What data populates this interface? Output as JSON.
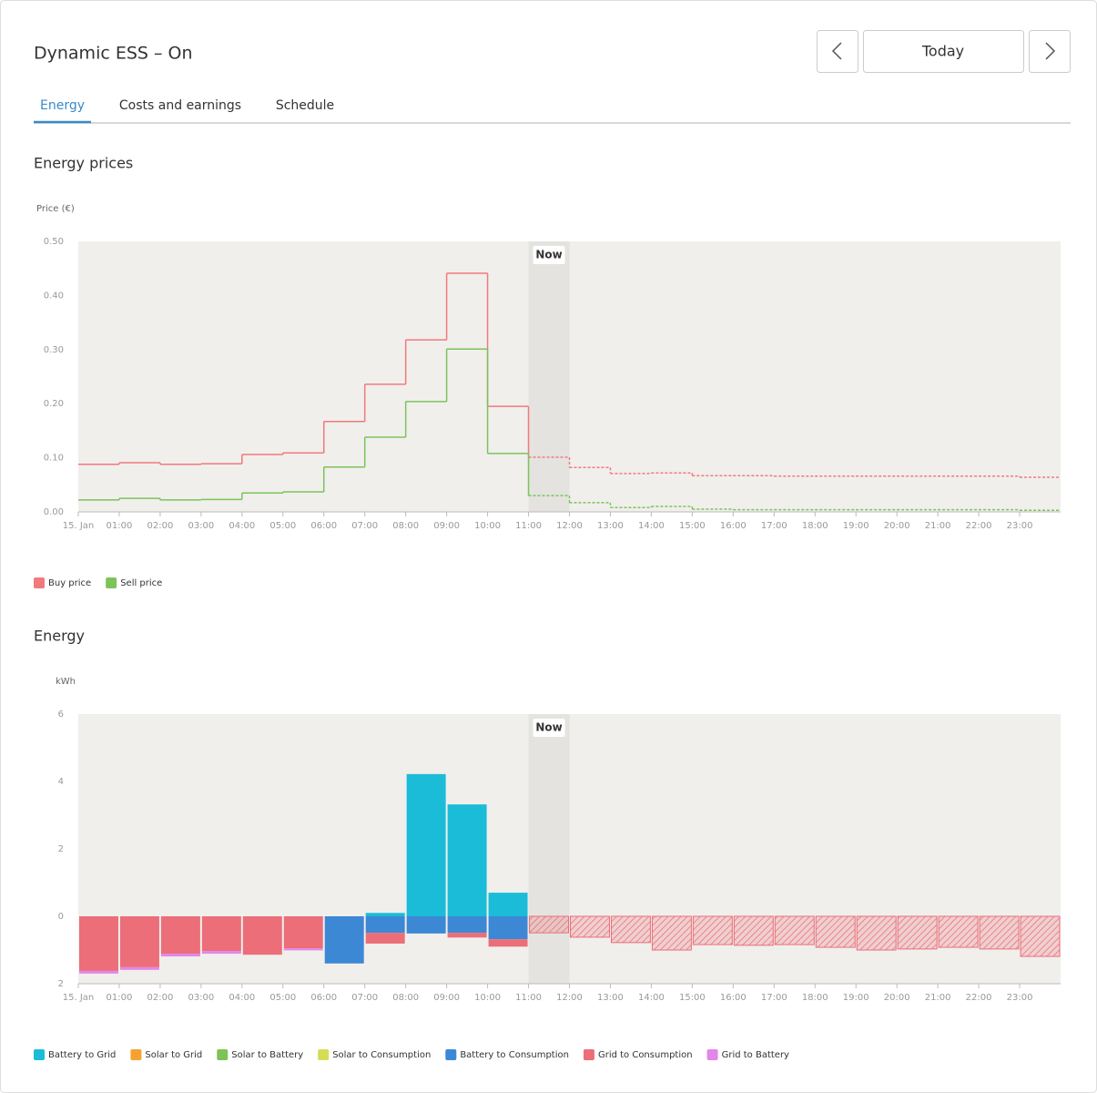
{
  "header": {
    "title": "Dynamic ESS – On",
    "date_button": "Today"
  },
  "tabs": [
    "Energy",
    "Costs and earnings",
    "Schedule"
  ],
  "chart_data": [
    {
      "type": "line",
      "step": true,
      "title": "Energy prices",
      "ylabel": "Price (€)",
      "categories": [
        "15. Jan",
        "01:00",
        "02:00",
        "03:00",
        "04:00",
        "05:00",
        "06:00",
        "07:00",
        "08:00",
        "09:00",
        "10:00",
        "11:00",
        "12:00",
        "13:00",
        "14:00",
        "15:00",
        "16:00",
        "17:00",
        "18:00",
        "19:00",
        "20:00",
        "21:00",
        "22:00",
        "23:00"
      ],
      "series": [
        {
          "name": "Buy price",
          "color": "#f07a7e",
          "values": [
            0.088,
            0.091,
            0.088,
            0.089,
            0.106,
            0.109,
            0.167,
            0.236,
            0.318,
            0.441,
            0.195,
            0.101,
            0.082,
            0.071,
            0.072,
            0.067,
            0.067,
            0.066,
            0.066,
            0.066,
            0.066,
            0.066,
            0.066,
            0.064
          ]
        },
        {
          "name": "Sell price",
          "color": "#7cc35b",
          "values": [
            0.022,
            0.025,
            0.022,
            0.023,
            0.035,
            0.037,
            0.083,
            0.138,
            0.204,
            0.301,
            0.108,
            0.03,
            0.017,
            0.008,
            0.01,
            0.005,
            0.004,
            0.004,
            0.004,
            0.004,
            0.004,
            0.004,
            0.004,
            0.003
          ]
        }
      ],
      "ylim": [
        0,
        0.5
      ],
      "yticks": [
        {
          "value": 0,
          "label": "0.00"
        },
        {
          "value": 0.1,
          "label": "0.10"
        },
        {
          "value": 0.2,
          "label": "0.20"
        },
        {
          "value": 0.3,
          "label": "0.30"
        },
        {
          "value": 0.4,
          "label": "0.40"
        },
        {
          "value": 0.5,
          "label": "0.50"
        }
      ],
      "grid": false,
      "annotation": {
        "text": "Now",
        "x": "11:00"
      }
    },
    {
      "type": "bar",
      "stacked": true,
      "title": "Energy",
      "ylabel": "kWh",
      "categories": [
        "15. Jan",
        "01:00",
        "02:00",
        "03:00",
        "04:00",
        "05:00",
        "06:00",
        "07:00",
        "08:00",
        "09:00",
        "10:00",
        "11:00",
        "12:00",
        "13:00",
        "14:00",
        "15:00",
        "16:00",
        "17:00",
        "18:00",
        "19:00",
        "20:00",
        "21:00",
        "22:00",
        "23:00"
      ],
      "series": [
        {
          "name": "Battery to Grid",
          "color": "#1bbcd8",
          "values": [
            0,
            0,
            0,
            0,
            0,
            0,
            0,
            0.1,
            4.22,
            3.32,
            0.7,
            0,
            0,
            0,
            0,
            0,
            0,
            0,
            0,
            0,
            0,
            0,
            0,
            0
          ]
        },
        {
          "name": "Solar to Grid",
          "color": "#f5a233",
          "values": [
            0,
            0,
            0,
            0,
            0,
            0,
            0,
            0,
            0,
            0,
            0,
            0,
            0,
            0,
            0,
            0,
            0,
            0,
            0,
            0,
            0,
            0,
            0,
            0
          ]
        },
        {
          "name": "Solar to Battery",
          "color": "#7dc358",
          "values": [
            0,
            0,
            0,
            0,
            0,
            0,
            0,
            0,
            0,
            0,
            0,
            0,
            0,
            0,
            0,
            0,
            0,
            0,
            0,
            0,
            0,
            0,
            0,
            0
          ]
        },
        {
          "name": "Solar to Consumption",
          "color": "#d5dc55",
          "values": [
            0,
            0,
            0,
            0,
            0,
            0,
            0,
            0,
            0,
            0,
            0,
            0,
            0,
            0,
            0,
            0,
            0,
            0,
            0,
            0,
            0,
            0,
            0,
            0
          ]
        },
        {
          "name": "Battery to Consumption",
          "color": "#3d88d5",
          "values": [
            0,
            0,
            0,
            0,
            0,
            0,
            -1.4,
            -0.49,
            -0.51,
            -0.49,
            -0.68,
            0,
            0,
            0,
            0,
            0,
            0,
            0,
            0,
            0,
            0,
            0,
            0,
            0
          ]
        },
        {
          "name": "Grid to Consumption",
          "color": "#eb6e78",
          "values": [
            -1.62,
            -1.51,
            -1.11,
            -1.03,
            -1.14,
            -0.95,
            0,
            -0.32,
            0,
            -0.14,
            -0.22,
            -0.49,
            -0.62,
            -0.78,
            -1.0,
            -0.84,
            -0.86,
            -0.84,
            -0.92,
            -1.0,
            -0.97,
            -0.92,
            -0.97,
            -1.19
          ]
        },
        {
          "name": "Grid to Battery",
          "color": "#e386e8",
          "values": [
            -0.08,
            -0.08,
            -0.08,
            -0.08,
            0,
            -0.06,
            0,
            0,
            0,
            0,
            0,
            0,
            0,
            0,
            0,
            0,
            0,
            0,
            0,
            0,
            0,
            0,
            0,
            0
          ]
        }
      ],
      "ylim": [
        -2,
        6
      ],
      "yticks": [
        {
          "value": -2,
          "label": "2"
        },
        0,
        2,
        4,
        6
      ],
      "grid": false,
      "annotation": {
        "text": "Now",
        "x": "11:00"
      }
    }
  ]
}
